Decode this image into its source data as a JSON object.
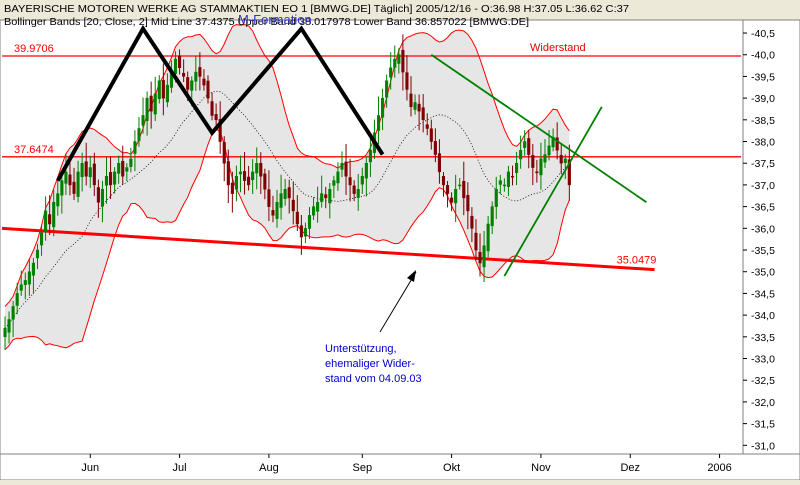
{
  "header": {
    "line1": "BAYERISCHE MOTOREN WERKE AG STAMMAKTIEN EO 1 [BMWG.DE]  Täglich] 2005/12/16 - O:36.98 H:37.05 L:36.62 C:37",
    "line2": "Bollinger Bands [20, Close, 2] Mid Line 37.4375 Upper Band 38.017978 Lower Band 36.857022 [BMWG.DE]",
    "overlay_title": "M-Formation"
  },
  "colors": {
    "background": "#ffffff",
    "band_fill": "#e0e0e0",
    "band_line": "#ff0000",
    "bull_candle": "#008000",
    "bear_candle": "#800000",
    "pattern_line": "#000000",
    "trend_line": "#008000",
    "level_line": "#ff0000",
    "annotation": "#0000cc"
  },
  "chart_data": {
    "type": "candlestick",
    "title": "BAYERISCHE MOTOREN WERKE AG STAMMAKTIEN EO 1 [BMWG.DE]",
    "ylim": [
      30.8,
      40.8
    ],
    "y_ticks": [
      "31,0",
      "31,5",
      "32,0",
      "32,5",
      "33,0",
      "33,5",
      "34,0",
      "34,5",
      "35,0",
      "35,5",
      "36,0",
      "36,5",
      "37,0",
      "37,5",
      "38,0",
      "38,5",
      "39,0",
      "39,5",
      "40,0",
      "40,5"
    ],
    "x_tick_labels": [
      "Jun",
      "Jul",
      "Aug",
      "Sep",
      "Okt",
      "Nov",
      "Dez",
      "2006"
    ],
    "x_tick_days": [
      21,
      43,
      65,
      88,
      110,
      132,
      154,
      176
    ],
    "x_max_day": 195,
    "last_bar": {
      "open": 36.98,
      "high": 37.05,
      "low": 36.62,
      "close": 37.0
    },
    "bollinger": {
      "period": 20,
      "source": "Close",
      "stddev": 2,
      "mid": 37.4375,
      "upper": 38.017978,
      "lower": 36.857022
    },
    "closes": [
      33.7,
      33.9,
      34.2,
      34.5,
      34.7,
      34.8,
      35.0,
      35.2,
      35.5,
      35.9,
      36.4,
      36.1,
      36.6,
      36.8,
      37.1,
      37.3,
      37.0,
      36.8,
      37.3,
      37.5,
      37.2,
      37.4,
      37.0,
      36.6,
      36.9,
      37.2,
      37.0,
      37.3,
      37.5,
      37.2,
      37.4,
      37.6,
      38.0,
      38.3,
      38.6,
      39.0,
      38.7,
      39.1,
      39.4,
      39.0,
      39.3,
      39.6,
      39.9,
      39.7,
      39.5,
      39.2,
      39.4,
      39.6,
      39.5,
      39.3,
      39.0,
      38.6,
      38.5,
      38.0,
      37.5,
      37.0,
      36.8,
      37.2,
      37.3,
      37.1,
      37.0,
      37.3,
      37.5,
      37.2,
      36.9,
      36.5,
      36.3,
      36.6,
      36.8,
      36.9,
      36.7,
      36.4,
      36.1,
      35.8,
      36.0,
      36.3,
      36.5,
      36.6,
      36.8,
      36.7,
      36.9,
      37.1,
      37.3,
      37.5,
      37.2,
      37.0,
      36.8,
      36.9,
      37.2,
      37.5,
      37.8,
      38.2,
      38.6,
      39.0,
      39.4,
      39.7,
      39.9,
      40.0,
      39.6,
      39.2,
      38.8,
      38.9,
      38.7,
      38.5,
      38.3,
      38.0,
      37.7,
      37.3,
      37.0,
      36.8,
      36.6,
      36.9,
      37.0,
      36.7,
      36.4,
      36.0,
      35.5,
      35.2,
      35.6,
      36.1,
      36.5,
      36.9,
      37.1,
      37.0,
      37.3,
      37.2,
      37.5,
      37.8,
      38.0,
      37.7,
      37.4,
      37.3,
      37.6,
      37.7,
      37.9,
      38.1,
      37.8,
      37.5,
      37.6,
      37.0
    ],
    "levels": [
      {
        "label": "39.9706",
        "value": 39.9706
      },
      {
        "label": "37.6474",
        "value": 37.6474
      }
    ],
    "support_line": {
      "label": "35.0479",
      "start_day": 0,
      "start_value": 36.0,
      "end_day": 160,
      "end_value": 35.0479
    },
    "m_formation": [
      {
        "day": 13,
        "value": 37.1
      },
      {
        "day": 34,
        "value": 40.6
      },
      {
        "day": 51,
        "value": 38.2
      },
      {
        "day": 73,
        "value": 40.6
      },
      {
        "day": 93,
        "value": 37.7
      }
    ],
    "green_lines": [
      {
        "d1": 123,
        "v1": 34.9,
        "d2": 147,
        "v2": 38.8
      },
      {
        "d1": 105,
        "v1": 40.0,
        "d2": 158,
        "v2": 36.6
      }
    ]
  },
  "annotations": {
    "resistance": "Widerstand",
    "support_lines": [
      "Unterstützung,",
      "ehemaliger Wider-",
      "stand vom 04.09.03"
    ]
  }
}
